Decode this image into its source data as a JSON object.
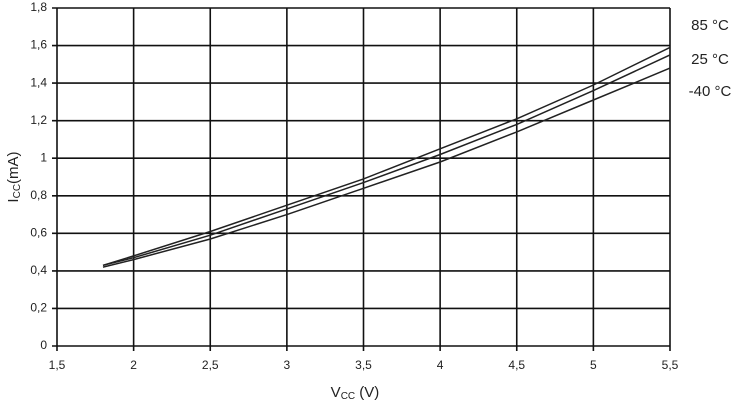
{
  "chart_data": {
    "type": "line",
    "xlabel_parts": [
      "V",
      "CC",
      " (V)"
    ],
    "ylabel_parts": [
      "I",
      "CC",
      "(mA)"
    ],
    "x": [
      1.8,
      2,
      2.5,
      3,
      3.5,
      4,
      4.5,
      5,
      5.5
    ],
    "series": [
      {
        "name": "85 °C",
        "color": "#222222",
        "values": [
          0.43,
          0.48,
          0.61,
          0.75,
          0.89,
          1.05,
          1.21,
          1.39,
          1.59
        ]
      },
      {
        "name": "25 °C",
        "color": "#222222",
        "values": [
          0.43,
          0.47,
          0.59,
          0.73,
          0.87,
          1.02,
          1.18,
          1.36,
          1.55
        ]
      },
      {
        "name": "-40 °C",
        "color": "#222222",
        "values": [
          0.42,
          0.46,
          0.57,
          0.7,
          0.84,
          0.98,
          1.14,
          1.31,
          1.48
        ]
      }
    ],
    "xlim": [
      1.5,
      5.5
    ],
    "xticks": [
      {
        "value": 1.5,
        "label": "1,5"
      },
      2,
      {
        "value": 2.5,
        "label": "2,5"
      },
      3,
      {
        "value": 3.5,
        "label": "3,5"
      },
      4,
      {
        "value": 4.5,
        "label": "4,5"
      },
      5,
      {
        "value": 5.5,
        "label": "5,5"
      }
    ],
    "ylim": [
      0,
      1.8
    ],
    "yticks": [
      0,
      {
        "value": 0.2,
        "label": "0,2"
      },
      {
        "value": 0.4,
        "label": "0,4"
      },
      {
        "value": 0.6,
        "label": "0,6"
      },
      {
        "value": 0.8,
        "label": "0,8"
      },
      1,
      {
        "value": 1.2,
        "label": "1,2"
      },
      {
        "value": 1.4,
        "label": "1,4"
      },
      {
        "value": 1.6,
        "label": "1,6"
      },
      {
        "value": 1.8,
        "label": "1,8"
      }
    ],
    "grid": true
  }
}
